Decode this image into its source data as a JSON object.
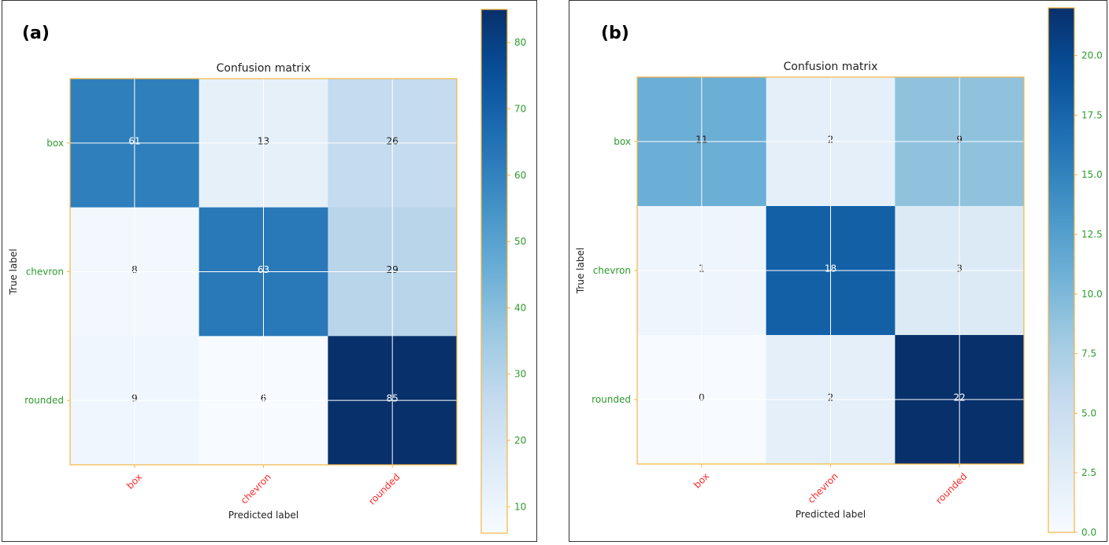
{
  "chart_data": [
    {
      "type": "heatmap",
      "panel_label": "(a)",
      "title": "Confusion matrix",
      "xlabel": "Predicted label",
      "ylabel": "True label",
      "x_categories": [
        "box",
        "chevron",
        "rounded"
      ],
      "y_categories": [
        "box",
        "chevron",
        "rounded"
      ],
      "values": [
        [
          61,
          13,
          26
        ],
        [
          8,
          63,
          29
        ],
        [
          9,
          6,
          85
        ]
      ],
      "colormap": "Blues",
      "colorbar": {
        "range": [
          6,
          85
        ],
        "ticks": [
          10,
          20,
          30,
          40,
          50,
          60,
          70,
          80
        ],
        "tick_labels": [
          "10",
          "20",
          "30",
          "40",
          "50",
          "60",
          "70",
          "80"
        ]
      },
      "grid": true
    },
    {
      "type": "heatmap",
      "panel_label": "(b)",
      "title": "Confusion matrix",
      "xlabel": "Predicted label",
      "ylabel": "True label",
      "x_categories": [
        "box",
        "chevron",
        "rounded"
      ],
      "y_categories": [
        "box",
        "chevron",
        "rounded"
      ],
      "values": [
        [
          11,
          2,
          9
        ],
        [
          1,
          18,
          3
        ],
        [
          0,
          2,
          22
        ]
      ],
      "colormap": "Blues",
      "colorbar": {
        "range": [
          0,
          22
        ],
        "ticks": [
          0,
          2.5,
          5,
          7.5,
          10,
          12.5,
          15,
          17.5,
          20
        ],
        "tick_labels": [
          "0.0",
          "2.5",
          "5.0",
          "7.5",
          "10.0",
          "12.5",
          "15.0",
          "17.5",
          "20.0"
        ]
      },
      "grid": true
    }
  ],
  "colors": {
    "axis_frame": "#f5b642",
    "y_tick_label": "#2e9a2e",
    "x_tick_label": "#ff2a2a",
    "colorbar_tick_label": "#2e9a2e",
    "text_dark": "#222222",
    "text_light": "#ffffff",
    "grid_line": "#ffffff"
  }
}
